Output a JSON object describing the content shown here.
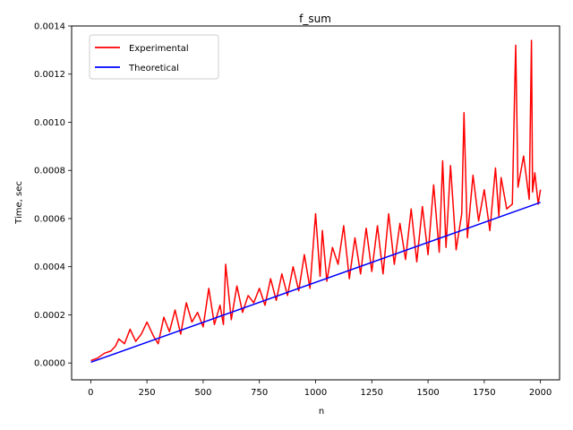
{
  "chart_data": {
    "type": "line",
    "title": "f_sum",
    "xlabel": "n",
    "ylabel": "Time, sec",
    "xlim": [
      -85,
      2085
    ],
    "ylim": [
      -7e-05,
      0.0014
    ],
    "x_ticks": [
      0,
      250,
      500,
      750,
      1000,
      1250,
      1500,
      1750,
      2000
    ],
    "x_tick_labels": [
      "0",
      "250",
      "500",
      "750",
      "1000",
      "1250",
      "1500",
      "1750",
      "2000"
    ],
    "y_ticks": [
      0,
      0.0002,
      0.0004,
      0.0006,
      0.0008,
      0.001,
      0.0012,
      0.0014
    ],
    "y_tick_labels": [
      "0.0000",
      "0.0002",
      "0.0004",
      "0.0006",
      "0.0008",
      "0.0010",
      "0.0012",
      "0.0014"
    ],
    "grid": false,
    "legend_position": "top-left",
    "series": [
      {
        "name": "Experimental",
        "color": "#ff0000",
        "x": [
          1,
          30,
          60,
          90,
          110,
          125,
          150,
          175,
          200,
          225,
          250,
          280,
          300,
          325,
          350,
          375,
          400,
          425,
          450,
          475,
          500,
          525,
          550,
          575,
          590,
          600,
          625,
          650,
          675,
          700,
          725,
          750,
          775,
          800,
          825,
          850,
          875,
          900,
          925,
          950,
          975,
          1000,
          1020,
          1030,
          1050,
          1075,
          1100,
          1125,
          1150,
          1175,
          1200,
          1225,
          1250,
          1275,
          1300,
          1325,
          1350,
          1375,
          1400,
          1425,
          1450,
          1475,
          1500,
          1525,
          1550,
          1565,
          1580,
          1600,
          1625,
          1650,
          1660,
          1675,
          1700,
          1725,
          1750,
          1775,
          1800,
          1815,
          1825,
          1850,
          1875,
          1885,
          1890,
          1900,
          1925,
          1950,
          1960,
          1965,
          1975,
          1990,
          2000
        ],
        "y": [
          1e-05,
          2e-05,
          4e-05,
          5e-05,
          7e-05,
          0.0001,
          8e-05,
          0.00014,
          9e-05,
          0.00012,
          0.00017,
          0.00011,
          8e-05,
          0.00019,
          0.00013,
          0.00022,
          0.00012,
          0.00025,
          0.00017,
          0.00021,
          0.00015,
          0.00031,
          0.00016,
          0.00024,
          0.00016,
          0.00041,
          0.00018,
          0.00032,
          0.00021,
          0.00028,
          0.00025,
          0.00031,
          0.00024,
          0.00035,
          0.00026,
          0.00037,
          0.00028,
          0.0004,
          0.0003,
          0.00045,
          0.00031,
          0.00062,
          0.00036,
          0.00055,
          0.00034,
          0.00048,
          0.00041,
          0.00057,
          0.00035,
          0.00052,
          0.00037,
          0.00056,
          0.00038,
          0.00057,
          0.00037,
          0.00062,
          0.00041,
          0.00058,
          0.00043,
          0.00064,
          0.00042,
          0.00065,
          0.00045,
          0.00074,
          0.00046,
          0.00084,
          0.00048,
          0.00082,
          0.00047,
          0.00062,
          0.00104,
          0.00052,
          0.00078,
          0.00059,
          0.00072,
          0.00055,
          0.00081,
          0.00061,
          0.00077,
          0.00064,
          0.00066,
          0.00112,
          0.00132,
          0.00073,
          0.00086,
          0.00068,
          0.00134,
          0.00071,
          0.00079,
          0.00066,
          0.00072
        ]
      },
      {
        "name": "Theoretical",
        "color": "#0000ff",
        "x": [
          1,
          2000
        ],
        "y": [
          3.3e-06,
          0.000667
        ]
      }
    ]
  }
}
